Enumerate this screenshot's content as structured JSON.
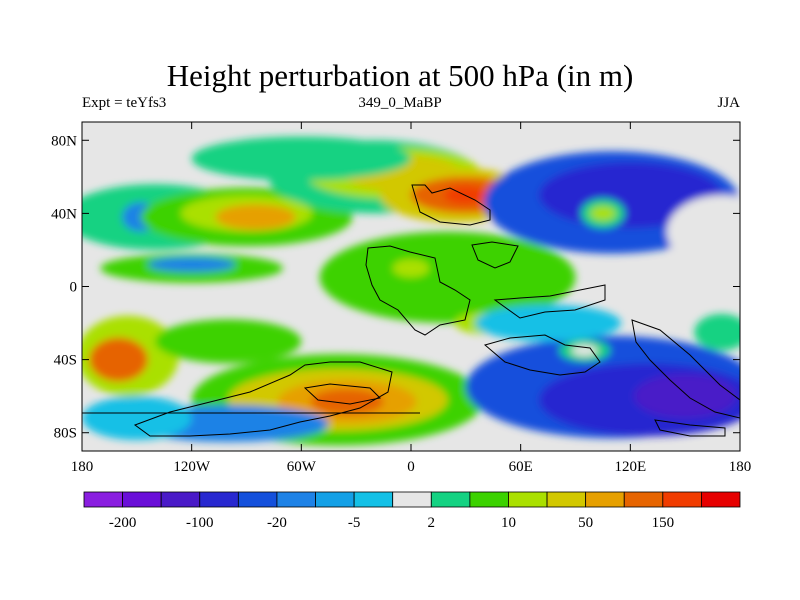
{
  "chart_data": {
    "type": "heatmap",
    "title": "Height perturbation at 500 hPa (in m)",
    "subtitle_left": "Expt = teYfs3",
    "subtitle_center": "349_0_MaBP",
    "subtitle_right": "JJA",
    "xlim": [
      -180,
      180
    ],
    "ylim": [
      -90,
      90
    ],
    "x_ticks": [
      {
        "value": -180,
        "label": "180"
      },
      {
        "value": -120,
        "label": "120W"
      },
      {
        "value": -60,
        "label": "60W"
      },
      {
        "value": 0,
        "label": "0"
      },
      {
        "value": 60,
        "label": "60E"
      },
      {
        "value": 120,
        "label": "120E"
      },
      {
        "value": 180,
        "label": "180"
      }
    ],
    "y_ticks": [
      {
        "value": 80,
        "label": "80N"
      },
      {
        "value": 40,
        "label": "40N"
      },
      {
        "value": 0,
        "label": "0"
      },
      {
        "value": -40,
        "label": "40S"
      },
      {
        "value": -80,
        "label": "80S"
      }
    ],
    "colorbar": {
      "colors": [
        "#8a1ee0",
        "#6a0fd8",
        "#4a1ac8",
        "#2828d0",
        "#1450dc",
        "#1e82e6",
        "#14a0e6",
        "#14c0e6",
        "#e6e6e6",
        "#14d282",
        "#3cd200",
        "#aae000",
        "#d2c800",
        "#e6a000",
        "#e66400",
        "#f03c00",
        "#e60000"
      ],
      "labels": [
        "-200",
        "-100",
        "-20",
        "-5",
        "2",
        "10",
        "50",
        "150"
      ]
    },
    "field_blobs": [
      {
        "lon": -140,
        "lat": 38,
        "rx": 50,
        "ry": 18,
        "color": "#14d282"
      },
      {
        "lon": -148,
        "lat": 38,
        "rx": 10,
        "ry": 8,
        "color": "#1e82e6"
      },
      {
        "lon": -90,
        "lat": 38,
        "rx": 58,
        "ry": 16,
        "color": "#3cd200"
      },
      {
        "lon": -90,
        "lat": 40,
        "rx": 36,
        "ry": 10,
        "color": "#aae000"
      },
      {
        "lon": -85,
        "lat": 38,
        "rx": 22,
        "ry": 7,
        "color": "#e6a000"
      },
      {
        "lon": -20,
        "lat": 60,
        "rx": 58,
        "ry": 20,
        "color": "#14d282"
      },
      {
        "lon": -10,
        "lat": 62,
        "rx": 48,
        "ry": 14,
        "color": "#aae000"
      },
      {
        "lon": -5,
        "lat": 62,
        "rx": 32,
        "ry": 10,
        "color": "#d2c800"
      },
      {
        "lon": 25,
        "lat": 50,
        "rx": 42,
        "ry": 15,
        "color": "#d2c800"
      },
      {
        "lon": 30,
        "lat": 50,
        "rx": 30,
        "ry": 10,
        "color": "#e66400"
      },
      {
        "lon": 30,
        "lat": 50,
        "rx": 12,
        "ry": 5,
        "color": "#f03c00"
      },
      {
        "lon": -60,
        "lat": 70,
        "rx": 60,
        "ry": 12,
        "color": "#14d282"
      },
      {
        "lon": 110,
        "lat": 46,
        "rx": 70,
        "ry": 28,
        "color": "#1450dc"
      },
      {
        "lon": 120,
        "lat": 50,
        "rx": 50,
        "ry": 18,
        "color": "#2828d0"
      },
      {
        "lon": 105,
        "lat": 40,
        "rx": 12,
        "ry": 8,
        "color": "#14d282"
      },
      {
        "lon": 105,
        "lat": 40,
        "rx": 7,
        "ry": 4,
        "color": "#aae000"
      },
      {
        "lon": 170,
        "lat": 30,
        "rx": 30,
        "ry": 20,
        "color": "#e6e6e6"
      },
      {
        "lon": 20,
        "lat": 5,
        "rx": 70,
        "ry": 25,
        "color": "#3cd200"
      },
      {
        "lon": 0,
        "lat": 10,
        "rx": 10,
        "ry": 5,
        "color": "#aae000"
      },
      {
        "lon": 40,
        "lat": -20,
        "rx": 16,
        "ry": 6,
        "color": "#aae000"
      },
      {
        "lon": -120,
        "lat": 10,
        "rx": 50,
        "ry": 8,
        "color": "#3cd200"
      },
      {
        "lon": -120,
        "lat": 12,
        "rx": 24,
        "ry": 4,
        "color": "#1e82e6"
      },
      {
        "lon": -155,
        "lat": -38,
        "rx": 28,
        "ry": 22,
        "color": "#aae000"
      },
      {
        "lon": -160,
        "lat": -40,
        "rx": 16,
        "ry": 12,
        "color": "#e66400"
      },
      {
        "lon": -100,
        "lat": -30,
        "rx": 40,
        "ry": 12,
        "color": "#3cd200"
      },
      {
        "lon": -40,
        "lat": -62,
        "rx": 80,
        "ry": 25,
        "color": "#3cd200"
      },
      {
        "lon": -40,
        "lat": -62,
        "rx": 60,
        "ry": 17,
        "color": "#d2c800"
      },
      {
        "lon": -35,
        "lat": -63,
        "rx": 38,
        "ry": 12,
        "color": "#e6a000"
      },
      {
        "lon": -35,
        "lat": -63,
        "rx": 20,
        "ry": 7,
        "color": "#e66400"
      },
      {
        "lon": -100,
        "lat": -75,
        "rx": 55,
        "ry": 10,
        "color": "#1e82e6"
      },
      {
        "lon": -150,
        "lat": -72,
        "rx": 30,
        "ry": 12,
        "color": "#14c0e6"
      },
      {
        "lon": 110,
        "lat": -55,
        "rx": 80,
        "ry": 28,
        "color": "#1450dc"
      },
      {
        "lon": 130,
        "lat": -62,
        "rx": 60,
        "ry": 20,
        "color": "#2828d0"
      },
      {
        "lon": 150,
        "lat": -60,
        "rx": 28,
        "ry": 12,
        "color": "#4a1ac8"
      },
      {
        "lon": 95,
        "lat": -35,
        "rx": 14,
        "ry": 6,
        "color": "#14d282"
      },
      {
        "lon": 95,
        "lat": -35,
        "rx": 7,
        "ry": 3,
        "color": "#e6e6e6"
      },
      {
        "lon": 75,
        "lat": -20,
        "rx": 40,
        "ry": 10,
        "color": "#14c0e6"
      },
      {
        "lon": 170,
        "lat": -25,
        "rx": 15,
        "ry": 10,
        "color": "#14d282"
      }
    ]
  }
}
